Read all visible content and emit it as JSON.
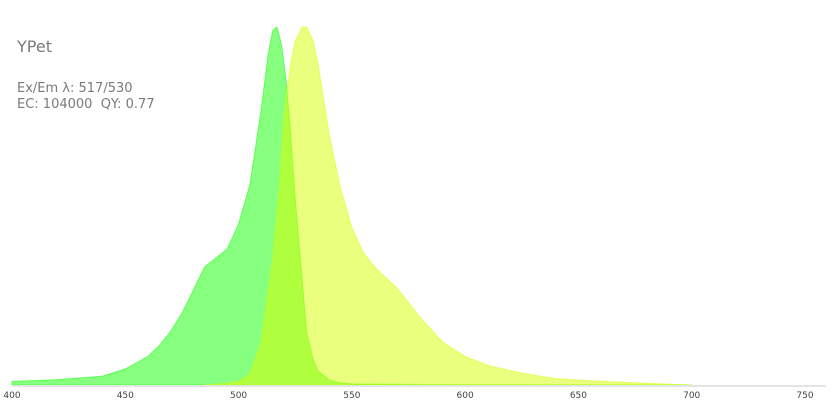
{
  "chart_data": {
    "type": "area",
    "title": "YPet",
    "info_lines": [
      "Ex/Em λ: 517/530",
      "EC: 104000  QY: 0.77"
    ],
    "xlim": [
      400,
      760
    ],
    "ylim": [
      0,
      1
    ],
    "xticks": [
      400,
      450,
      500,
      550,
      600,
      650,
      700,
      750
    ],
    "grid": false,
    "colors": {
      "excitation": "#88ff80",
      "emission": "#ebff80",
      "overlap": "#aaff3a"
    },
    "series": [
      {
        "x": [
          400,
          420,
          440,
          450,
          460,
          465,
          470,
          475,
          480,
          485,
          490,
          495,
          500,
          505,
          510,
          513,
          515,
          517,
          519,
          521,
          523,
          525,
          528,
          530,
          533,
          535,
          540,
          545,
          550,
          600,
          700
        ],
        "y": [
          0.01,
          0.015,
          0.025,
          0.045,
          0.08,
          0.11,
          0.15,
          0.2,
          0.265,
          0.33,
          0.355,
          0.38,
          0.45,
          0.56,
          0.77,
          0.92,
          0.99,
          1.0,
          0.95,
          0.85,
          0.7,
          0.52,
          0.3,
          0.15,
          0.07,
          0.04,
          0.014,
          0.006,
          0.003,
          0.001,
          0
        ]
      },
      {
        "x": [
          485,
          490,
          495,
          500,
          505,
          510,
          515,
          518,
          520,
          523,
          525,
          528,
          530,
          533,
          535,
          540,
          545,
          550,
          555,
          560,
          570,
          580,
          590,
          600,
          610,
          620,
          630,
          640,
          660,
          680,
          700
        ],
        "y": [
          0,
          0.002,
          0.005,
          0.01,
          0.03,
          0.12,
          0.35,
          0.55,
          0.75,
          0.9,
          0.96,
          1.0,
          1.0,
          0.96,
          0.9,
          0.7,
          0.55,
          0.44,
          0.37,
          0.33,
          0.27,
          0.19,
          0.12,
          0.08,
          0.055,
          0.04,
          0.028,
          0.018,
          0.01,
          0.005,
          0
        ]
      }
    ]
  }
}
